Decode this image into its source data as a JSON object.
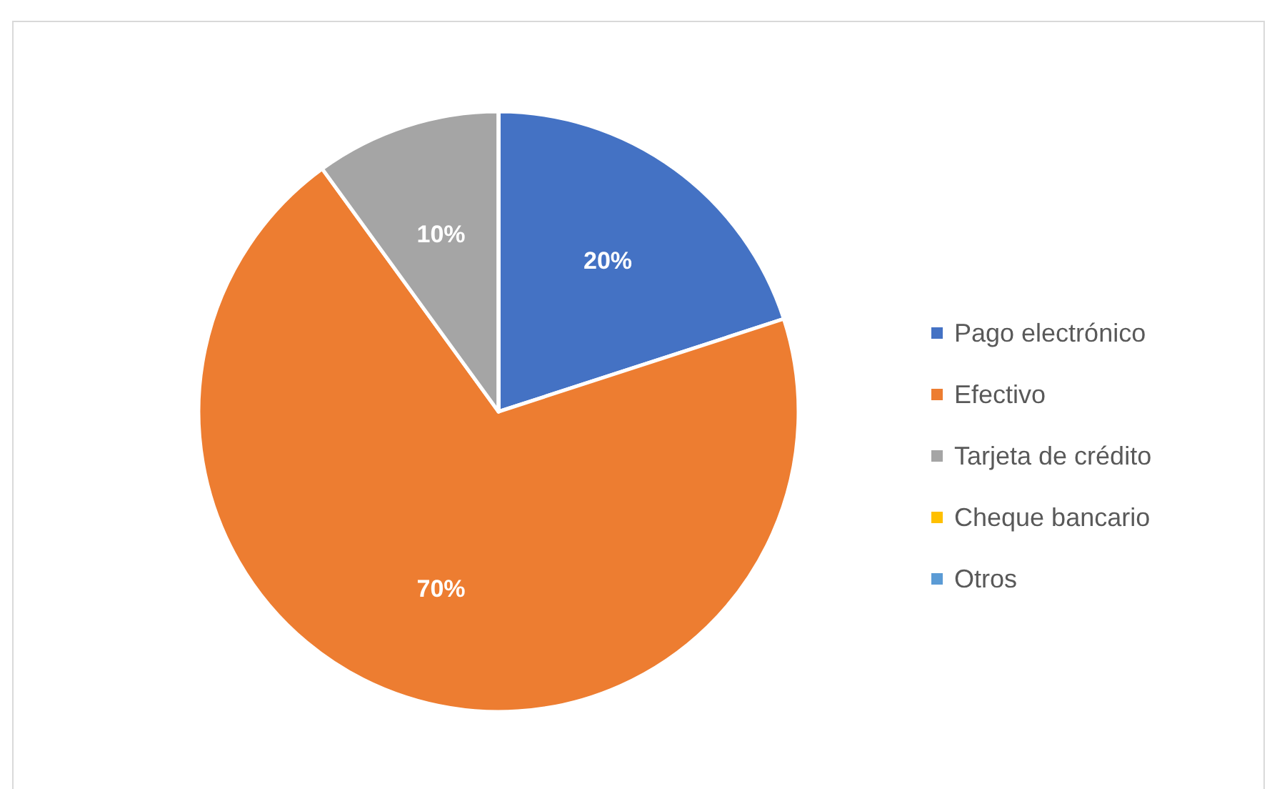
{
  "chart_data": {
    "type": "pie",
    "categories": [
      "Pago electrónico",
      "Efectivo",
      "Tarjeta de crédito",
      "Cheque bancario",
      "Otros"
    ],
    "values": [
      20,
      70,
      10,
      0,
      0
    ],
    "colors": [
      "#4472c4",
      "#ed7d31",
      "#a5a5a5",
      "#ffc000",
      "#5b9bd5"
    ],
    "value_labels": [
      "20%",
      "70%",
      "10%",
      null,
      null
    ],
    "legend": "right"
  }
}
